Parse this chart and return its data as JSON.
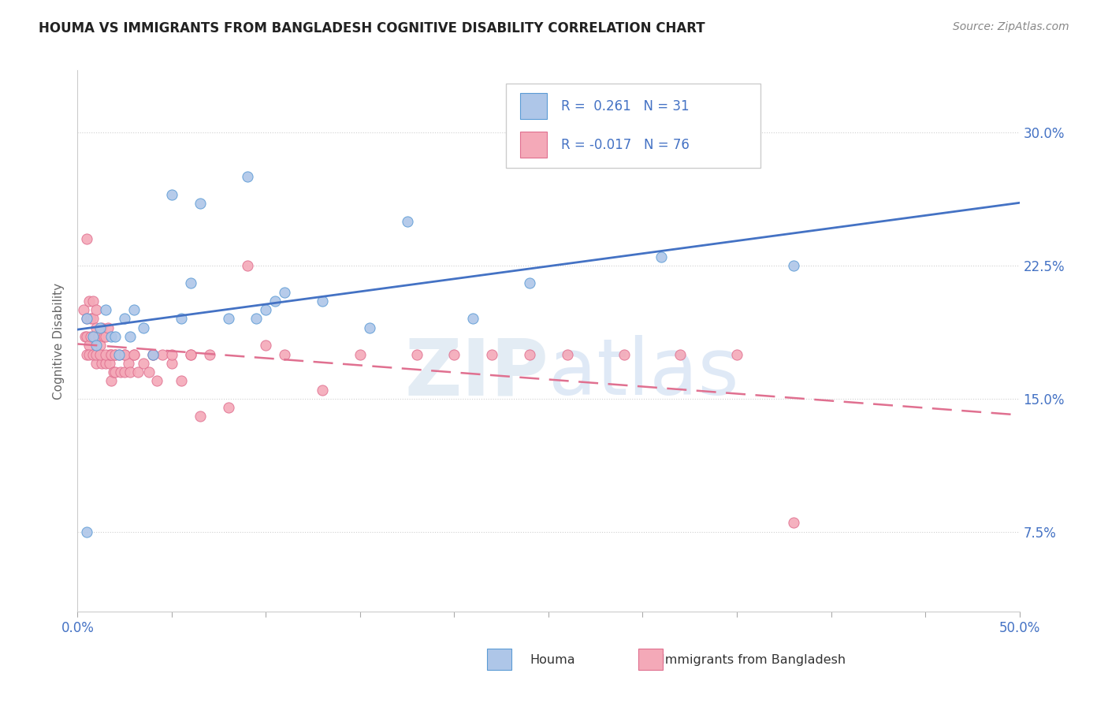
{
  "title": "HOUMA VS IMMIGRANTS FROM BANGLADESH COGNITIVE DISABILITY CORRELATION CHART",
  "source": "Source: ZipAtlas.com",
  "ylabel": "Cognitive Disability",
  "ytick_labels": [
    "7.5%",
    "15.0%",
    "22.5%",
    "30.0%"
  ],
  "ytick_vals": [
    0.075,
    0.15,
    0.225,
    0.3
  ],
  "xlim": [
    0.0,
    0.5
  ],
  "ylim": [
    0.03,
    0.335
  ],
  "color_houma_fill": "#aec6e8",
  "color_houma_edge": "#5b9bd5",
  "color_bang_fill": "#f4a9b8",
  "color_bang_edge": "#e07090",
  "color_houma_line": "#4472c4",
  "color_bang_line": "#e07090",
  "color_text_blue": "#4472c4",
  "color_grid": "#d0d0d0",
  "houma_x": [
    0.005,
    0.008,
    0.01,
    0.012,
    0.015,
    0.018,
    0.02,
    0.022,
    0.025,
    0.028,
    0.03,
    0.035,
    0.04,
    0.05,
    0.055,
    0.06,
    0.065,
    0.08,
    0.09,
    0.095,
    0.1,
    0.105,
    0.11,
    0.13,
    0.155,
    0.175,
    0.21,
    0.24,
    0.31,
    0.38,
    0.005
  ],
  "houma_y": [
    0.195,
    0.185,
    0.18,
    0.19,
    0.2,
    0.185,
    0.185,
    0.175,
    0.195,
    0.185,
    0.2,
    0.19,
    0.175,
    0.265,
    0.195,
    0.215,
    0.26,
    0.195,
    0.275,
    0.195,
    0.2,
    0.205,
    0.21,
    0.205,
    0.19,
    0.25,
    0.195,
    0.215,
    0.23,
    0.225,
    0.075
  ],
  "bang_x": [
    0.003,
    0.004,
    0.005,
    0.005,
    0.005,
    0.006,
    0.006,
    0.007,
    0.007,
    0.008,
    0.008,
    0.009,
    0.01,
    0.01,
    0.01,
    0.011,
    0.012,
    0.013,
    0.013,
    0.014,
    0.015,
    0.015,
    0.016,
    0.017,
    0.017,
    0.018,
    0.018,
    0.019,
    0.02,
    0.02,
    0.022,
    0.023,
    0.025,
    0.025,
    0.027,
    0.028,
    0.03,
    0.032,
    0.035,
    0.038,
    0.04,
    0.042,
    0.045,
    0.05,
    0.055,
    0.06,
    0.065,
    0.07,
    0.08,
    0.09,
    0.1,
    0.11,
    0.13,
    0.15,
    0.18,
    0.2,
    0.22,
    0.24,
    0.26,
    0.29,
    0.32,
    0.35,
    0.38,
    0.005,
    0.006,
    0.008,
    0.01,
    0.012,
    0.015,
    0.018,
    0.02,
    0.025,
    0.03,
    0.04,
    0.05,
    0.06
  ],
  "bang_y": [
    0.2,
    0.185,
    0.24,
    0.195,
    0.185,
    0.205,
    0.18,
    0.195,
    0.185,
    0.205,
    0.195,
    0.185,
    0.2,
    0.19,
    0.17,
    0.185,
    0.18,
    0.19,
    0.17,
    0.185,
    0.185,
    0.17,
    0.19,
    0.17,
    0.175,
    0.175,
    0.16,
    0.165,
    0.175,
    0.165,
    0.175,
    0.165,
    0.175,
    0.165,
    0.17,
    0.165,
    0.175,
    0.165,
    0.17,
    0.165,
    0.175,
    0.16,
    0.175,
    0.17,
    0.16,
    0.175,
    0.14,
    0.175,
    0.145,
    0.225,
    0.18,
    0.175,
    0.155,
    0.175,
    0.175,
    0.175,
    0.175,
    0.175,
    0.175,
    0.175,
    0.175,
    0.175,
    0.08,
    0.175,
    0.175,
    0.175,
    0.175,
    0.175,
    0.175,
    0.175,
    0.175,
    0.175,
    0.175,
    0.175,
    0.175,
    0.175
  ]
}
